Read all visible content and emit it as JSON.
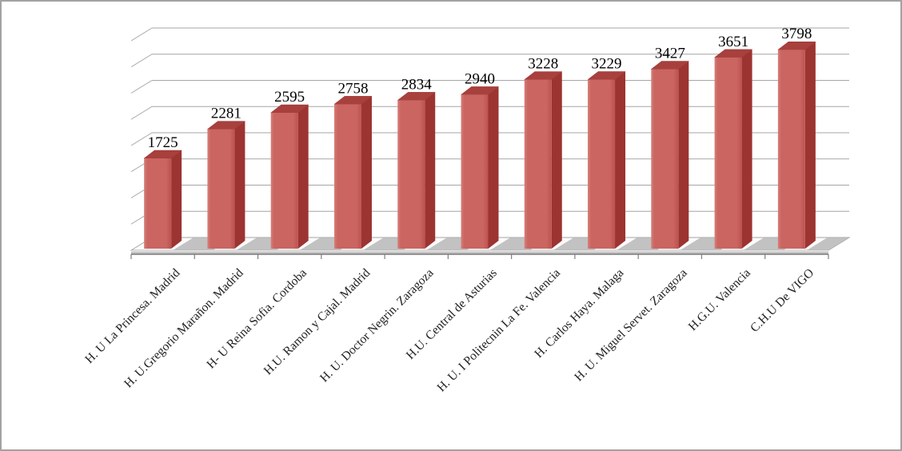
{
  "window": {
    "background": "#ffffff",
    "border_color": "#a2a2a2"
  },
  "chart_data": {
    "type": "bar",
    "style": "3d-column",
    "title": "",
    "xlabel": "",
    "ylabel": "",
    "categories": [
      "H. U La Princesa. Madrid",
      "H. U.Gregorio Marañon. Madrid",
      "H- U Reina Sofia. Cordoba",
      "H.U. Ramon y Cajal. Madrid",
      "H. U. Doctor Negrin. Zaragoza",
      "H.U. Central de Asturias",
      "H. U. I Politecnin La Fe. Valencia",
      "H. Carlos Haya. Malaga",
      "H. U. Miguel Servet. Zaragoza",
      "H.G.U. Valencia",
      "C.H.U De VIGO"
    ],
    "values": [
      1725,
      2281,
      2595,
      2758,
      2834,
      2940,
      3228,
      3229,
      3427,
      3651,
      3798
    ],
    "data_labels_shown": true,
    "ylim": [
      0,
      4000
    ],
    "gridline_step": 500,
    "grid": true,
    "legend_position": "none",
    "y_tick_labels_visible": false,
    "category_label_rotation_deg": -45,
    "colors": {
      "bar_front": "#ca6561",
      "bar_front_light": "#d67f7a",
      "bar_front_dark": "#bd524f",
      "bar_side": "#9c3431",
      "bar_top": "#a8403d",
      "gridline": "#a6a6a6",
      "axis_line": "#7f7f7f",
      "floor_fill": "#fbfbfb",
      "floor_shadow": "#b7b7b7",
      "skirt_top": "#ececec",
      "skirt_bottom": "#a8a8a8",
      "label_text": "#000000",
      "category_text": "#1f1f1f"
    }
  }
}
